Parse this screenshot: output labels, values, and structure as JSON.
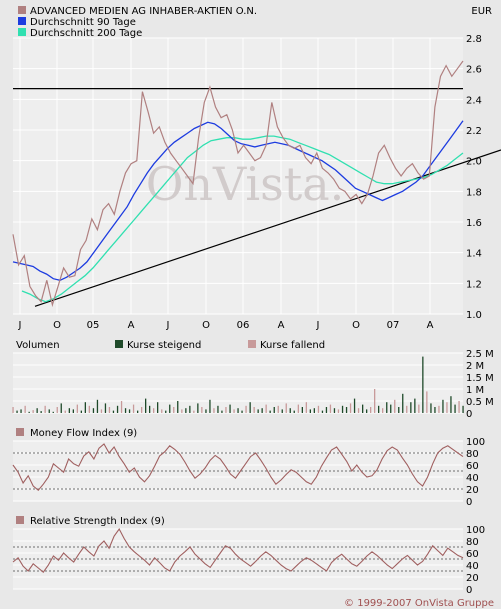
{
  "colors": {
    "background": "#e8e8e8",
    "plot_bg": "#eeeeee",
    "price": "#b08080",
    "ma90": "#1d3ce0",
    "ma200": "#30e0b0",
    "rising": "#1f4a2a",
    "falling": "#c89a9a",
    "indicator": "#a06060",
    "grid": "#ffffff",
    "trend": "#000000"
  },
  "legend": {
    "price": "ADVANCED MEDIEN AG INHABER-AKTIEN O.N.",
    "ma90": "Durchschnitt 90 Tage",
    "ma200": "Durchschnitt 200 Tage"
  },
  "currency": "EUR",
  "watermark": "OnVista.",
  "copyright": "© 1999-2007 OnVista Gruppe",
  "x_ticks": [
    "J",
    "O",
    "05",
    "A",
    "J",
    "O",
    "06",
    "A",
    "J",
    "O",
    "07",
    "A"
  ],
  "chart_data": [
    {
      "type": "line",
      "title": "ADVANCED MEDIEN AG INHABER-AKTIEN O.N.",
      "ylabel": "EUR",
      "ylim": [
        1.0,
        2.8
      ],
      "yticks": [
        1.0,
        1.2,
        1.4,
        1.6,
        1.8,
        2.0,
        2.2,
        2.4,
        2.6,
        2.8
      ],
      "grid": true,
      "legend_position": "top-left",
      "x_start": "2004-07",
      "x_end": "2007-05",
      "series": [
        {
          "name": "ADVANCED MEDIEN AG INHABER-AKTIEN O.N.",
          "values": [
            1.52,
            1.32,
            1.38,
            1.18,
            1.12,
            1.08,
            1.22,
            1.06,
            1.18,
            1.3,
            1.24,
            1.25,
            1.42,
            1.48,
            1.62,
            1.55,
            1.68,
            1.72,
            1.65,
            1.8,
            1.92,
            1.98,
            2.0,
            2.45,
            2.32,
            2.18,
            2.22,
            2.12,
            2.05,
            2.0,
            1.95,
            1.9,
            1.85,
            2.15,
            2.38,
            2.48,
            2.35,
            2.28,
            2.3,
            2.2,
            2.05,
            2.1,
            2.05,
            2.0,
            2.02,
            2.1,
            2.38,
            2.22,
            2.15,
            2.1,
            2.08,
            2.1,
            2.02,
            1.98,
            2.05,
            1.95,
            1.92,
            1.88,
            1.82,
            1.8,
            1.75,
            1.78,
            1.72,
            1.78,
            1.9,
            2.05,
            2.1,
            2.02,
            1.95,
            1.9,
            1.95,
            1.98,
            1.92,
            1.88,
            1.9,
            2.35,
            2.55,
            2.62,
            2.55,
            2.6,
            2.65
          ]
        },
        {
          "name": "Durchschnitt 90 Tage",
          "values": [
            1.34,
            1.33,
            1.32,
            1.31,
            1.28,
            1.26,
            1.23,
            1.22,
            1.24,
            1.27,
            1.3,
            1.34,
            1.4,
            1.46,
            1.52,
            1.58,
            1.64,
            1.7,
            1.78,
            1.85,
            1.92,
            1.98,
            2.03,
            2.08,
            2.12,
            2.15,
            2.18,
            2.21,
            2.23,
            2.25,
            2.24,
            2.21,
            2.17,
            2.13,
            2.11,
            2.1,
            2.09,
            2.1,
            2.11,
            2.12,
            2.11,
            2.1,
            2.08,
            2.06,
            2.04,
            2.02,
            2.0,
            1.97,
            1.94,
            1.9,
            1.86,
            1.82,
            1.8,
            1.78,
            1.76,
            1.74,
            1.76,
            1.78,
            1.8,
            1.83,
            1.86,
            1.9,
            1.96,
            2.02,
            2.08,
            2.14,
            2.2,
            2.26
          ]
        },
        {
          "name": "Durchschnitt 200 Tage",
          "values": [
            1.15,
            1.13,
            1.1,
            1.08,
            1.1,
            1.13,
            1.17,
            1.21,
            1.25,
            1.3,
            1.36,
            1.42,
            1.48,
            1.54,
            1.6,
            1.66,
            1.72,
            1.78,
            1.84,
            1.9,
            1.96,
            2.02,
            2.06,
            2.1,
            2.13,
            2.14,
            2.15,
            2.15,
            2.14,
            2.14,
            2.15,
            2.16,
            2.16,
            2.15,
            2.14,
            2.12,
            2.1,
            2.08,
            2.06,
            2.04,
            2.01,
            1.98,
            1.95,
            1.92,
            1.89,
            1.86,
            1.85,
            1.85,
            1.86,
            1.87,
            1.88,
            1.89,
            1.91,
            1.94,
            1.97,
            2.01,
            2.05
          ]
        }
      ],
      "annotations": [
        {
          "name": "resistance line",
          "from": [
            "start",
            2.47
          ],
          "to": [
            "end",
            2.47
          ]
        },
        {
          "name": "support trend line",
          "from": [
            "2004-08",
            1.05
          ],
          "to": [
            "end",
            2.0
          ]
        }
      ]
    },
    {
      "type": "bar",
      "title": "Volumen",
      "legend": [
        "Kurse steigend",
        "Kurse fallend"
      ],
      "ylim": [
        0,
        2.5
      ],
      "yticks": [
        "0",
        "0.5 M",
        "1 M",
        "1.5 M",
        "2 M",
        "2.5 M"
      ],
      "series": [
        {
          "name": "Volumen (M)",
          "values": [
            0.25,
            0.1,
            0.15,
            0.3,
            0.05,
            0.12,
            0.2,
            0.08,
            0.3,
            0.15,
            0.05,
            0.25,
            0.4,
            0.1,
            0.2,
            0.15,
            0.35,
            0.1,
            0.45,
            0.3,
            0.2,
            0.55,
            0.15,
            0.4,
            0.25,
            0.1,
            0.3,
            0.5,
            0.2,
            0.15,
            0.35,
            0.1,
            0.25,
            0.6,
            0.3,
            0.2,
            0.45,
            0.15,
            0.1,
            0.35,
            0.25,
            0.5,
            0.15,
            0.2,
            0.3,
            0.1,
            0.4,
            0.25,
            0.15,
            0.55,
            0.2,
            0.3,
            0.1,
            0.25,
            0.35,
            0.15,
            0.2,
            0.1,
            0.3,
            0.45,
            0.25,
            0.15,
            0.2,
            0.35,
            0.1,
            0.25,
            0.3,
            0.15,
            0.4,
            0.2,
            0.1,
            0.35,
            0.25,
            0.45,
            0.15,
            0.2,
            0.3,
            0.1,
            0.25,
            0.35,
            0.2,
            0.15,
            0.3,
            0.25,
            0.4,
            0.6,
            0.2,
            0.35,
            0.15,
            0.25,
            1.0,
            0.3,
            0.2,
            0.45,
            0.35,
            0.55,
            0.25,
            0.8,
            0.3,
            0.45,
            0.6,
            0.35,
            2.35,
            0.9,
            0.4,
            0.25,
            0.3,
            0.55,
            0.45,
            0.7,
            0.35,
            0.5,
            0.3
          ]
        },
        {
          "name": "direction (1 = steigend, 0 = fallend)",
          "values": [
            0,
            1,
            1,
            0,
            1,
            0,
            1,
            1,
            0,
            1,
            1,
            0,
            1,
            0,
            1,
            1,
            0,
            1,
            1,
            0,
            1,
            1,
            0,
            1,
            0,
            1,
            1,
            0,
            1,
            1,
            0,
            1,
            0,
            1,
            1,
            0,
            1,
            0,
            1,
            1,
            0,
            1,
            0,
            1,
            1,
            0,
            1,
            0,
            1,
            1,
            0,
            1,
            1,
            0,
            1,
            0,
            1,
            1,
            0,
            1,
            0,
            1,
            1,
            0,
            1,
            1,
            0,
            1,
            0,
            1,
            1,
            0,
            1,
            0,
            1,
            1,
            0,
            1,
            1,
            0,
            1,
            0,
            1,
            1,
            0,
            1,
            0,
            1,
            1,
            0,
            0,
            1,
            0,
            1,
            1,
            0,
            1,
            1,
            0,
            1,
            1,
            0,
            1,
            0,
            1,
            1,
            0,
            1,
            0,
            1,
            1,
            0,
            1
          ]
        }
      ]
    },
    {
      "type": "line",
      "title": "Money Flow Index (9)",
      "ylim": [
        0,
        100
      ],
      "yticks": [
        0,
        20,
        40,
        60,
        80,
        100
      ],
      "reference_lines": [
        20,
        50,
        80
      ],
      "series": [
        {
          "name": "Money Flow Index (9)",
          "values": [
            60,
            48,
            30,
            42,
            25,
            18,
            28,
            40,
            62,
            55,
            48,
            70,
            62,
            58,
            75,
            82,
            70,
            88,
            95,
            80,
            90,
            74,
            62,
            48,
            55,
            40,
            32,
            42,
            58,
            75,
            82,
            92,
            86,
            78,
            65,
            50,
            38,
            45,
            55,
            68,
            76,
            70,
            58,
            45,
            38,
            50,
            62,
            74,
            80,
            68,
            55,
            40,
            28,
            35,
            44,
            52,
            48,
            40,
            32,
            28,
            40,
            58,
            72,
            85,
            90,
            78,
            66,
            50,
            60,
            48,
            40,
            42,
            52,
            70,
            84,
            90,
            85,
            72,
            60,
            45,
            32,
            25,
            40,
            62,
            80,
            88,
            92,
            86,
            80,
            74
          ]
        }
      ]
    },
    {
      "type": "line",
      "title": "Relative Strength Index (9)",
      "ylim": [
        0,
        100
      ],
      "yticks": [
        0,
        20,
        40,
        60,
        80,
        100
      ],
      "reference_lines": [
        30,
        50,
        70
      ],
      "series": [
        {
          "name": "Relative Strength Index (9)",
          "values": [
            45,
            52,
            38,
            30,
            42,
            35,
            28,
            40,
            55,
            48,
            60,
            52,
            45,
            58,
            70,
            62,
            55,
            72,
            80,
            68,
            88,
            100,
            84,
            70,
            62,
            55,
            48,
            40,
            52,
            44,
            35,
            30,
            45,
            55,
            62,
            70,
            58,
            50,
            42,
            36,
            48,
            60,
            72,
            68,
            58,
            50,
            44,
            38,
            46,
            55,
            62,
            56,
            48,
            40,
            34,
            30,
            38,
            46,
            52,
            48,
            42,
            36,
            30,
            44,
            52,
            58,
            50,
            42,
            38,
            46,
            55,
            62,
            56,
            48,
            40,
            34,
            42,
            50,
            56,
            48,
            40,
            46,
            58,
            72,
            64,
            56,
            68,
            62,
            56,
            52
          ]
        }
      ]
    }
  ]
}
